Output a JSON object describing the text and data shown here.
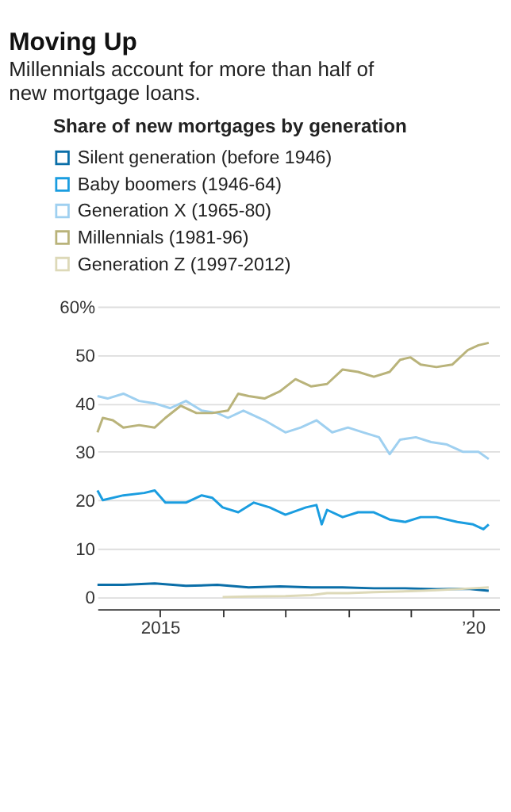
{
  "chart_data": {
    "type": "line",
    "title": "Moving Up",
    "subtitle": "Millennials account for more than half of new mortgage loans.",
    "legend_title": "Share of new mortgages by generation",
    "legend": "top left",
    "grid": "y",
    "xlim": [
      "2014-01",
      "2020-06"
    ],
    "xticks": [
      {
        "value": "2015",
        "label": "2015"
      },
      {
        "value": "2016",
        "label": null
      },
      {
        "value": "2017",
        "label": null
      },
      {
        "value": "2018",
        "label": null
      },
      {
        "value": "2019",
        "label": null
      },
      {
        "value": "2020",
        "label": "’20"
      }
    ],
    "ylim": [
      -2.5,
      60
    ],
    "yticks": [
      0,
      10,
      20,
      30,
      40,
      50,
      {
        "value": 60,
        "label": "60%"
      }
    ],
    "series": [
      {
        "name": "Silent generation (before 1946)",
        "color": "#0a6ea8",
        "x": [
          "2014-01",
          "2014-06",
          "2014-12",
          "2015-06",
          "2015-12",
          "2016-06",
          "2016-12",
          "2017-06",
          "2017-12",
          "2018-06",
          "2018-12",
          "2019-06",
          "2019-12",
          "2020-04"
        ],
        "values": [
          2.5,
          2.5,
          2.8,
          2.3,
          2.5,
          2,
          2.2,
          2,
          2,
          1.8,
          1.8,
          1.6,
          1.7,
          1.3
        ]
      },
      {
        "name": "Baby boomers (1946-64)",
        "color": "#1a9de0",
        "x": [
          "2014-01",
          "2014-02",
          "2014-06",
          "2014-10",
          "2014-12",
          "2015-02",
          "2015-06",
          "2015-09",
          "2015-11",
          "2016-01",
          "2016-04",
          "2016-07",
          "2016-10",
          "2017-01",
          "2017-05",
          "2017-07",
          "2017-08",
          "2017-09",
          "2017-12",
          "2018-03",
          "2018-06",
          "2018-09",
          "2018-12",
          "2019-03",
          "2019-06",
          "2019-10",
          "2020-01",
          "2020-03",
          "2020-04"
        ],
        "values": [
          22,
          20,
          21,
          21.5,
          22,
          19.5,
          19.5,
          21,
          20.5,
          18.5,
          17.5,
          19.5,
          18.5,
          17,
          18.5,
          19,
          15,
          18,
          16.5,
          17.5,
          17.5,
          16,
          15.5,
          16.5,
          16.5,
          15.5,
          15,
          14,
          15
        ]
      },
      {
        "name": "Generation X (1965-80)",
        "color": "#9fd0f0",
        "x": [
          "2014-01",
          "2014-03",
          "2014-06",
          "2014-09",
          "2014-12",
          "2015-03",
          "2015-06",
          "2015-09",
          "2015-12",
          "2016-02",
          "2016-05",
          "2016-09",
          "2017-01",
          "2017-04",
          "2017-07",
          "2017-10",
          "2018-01",
          "2018-04",
          "2018-07",
          "2018-09",
          "2018-11",
          "2019-02",
          "2019-05",
          "2019-08",
          "2019-11",
          "2020-02",
          "2020-04"
        ],
        "values": [
          41.5,
          41,
          42,
          40.5,
          40,
          39,
          40.5,
          38.5,
          38,
          37,
          38.5,
          36.5,
          34,
          35,
          36.5,
          34,
          35,
          34,
          33,
          29.5,
          32.5,
          33,
          32,
          31.5,
          30,
          30,
          28.5
        ]
      },
      {
        "name": "Millennials (1981-96)",
        "color": "#b9b37a",
        "x": [
          "2014-01",
          "2014-02",
          "2014-04",
          "2014-06",
          "2014-09",
          "2014-12",
          "2015-02",
          "2015-05",
          "2015-08",
          "2015-11",
          "2016-02",
          "2016-04",
          "2016-06",
          "2016-09",
          "2016-12",
          "2017-03",
          "2017-06",
          "2017-09",
          "2017-12",
          "2018-03",
          "2018-06",
          "2018-09",
          "2018-11",
          "2019-01",
          "2019-03",
          "2019-06",
          "2019-09",
          "2019-12",
          "2020-02",
          "2020-04"
        ],
        "values": [
          34,
          37,
          36.5,
          35,
          35.5,
          35,
          37,
          39.5,
          38,
          38,
          38.5,
          42,
          41.5,
          41,
          42.5,
          45,
          43.5,
          44,
          47,
          46.5,
          45.5,
          46.5,
          49,
          49.5,
          48,
          47.5,
          48,
          51,
          52,
          52.5
        ]
      },
      {
        "name": "Generation Z (1997-2012)",
        "color": "#ddd9b8",
        "x": [
          "2016-01",
          "2016-06",
          "2017-01",
          "2017-06",
          "2017-09",
          "2018-01",
          "2018-06",
          "2019-01",
          "2019-06",
          "2020-01",
          "2020-04"
        ],
        "values": [
          0,
          0.1,
          0.2,
          0.4,
          0.8,
          0.8,
          1,
          1.2,
          1.4,
          1.8,
          2
        ]
      }
    ]
  }
}
